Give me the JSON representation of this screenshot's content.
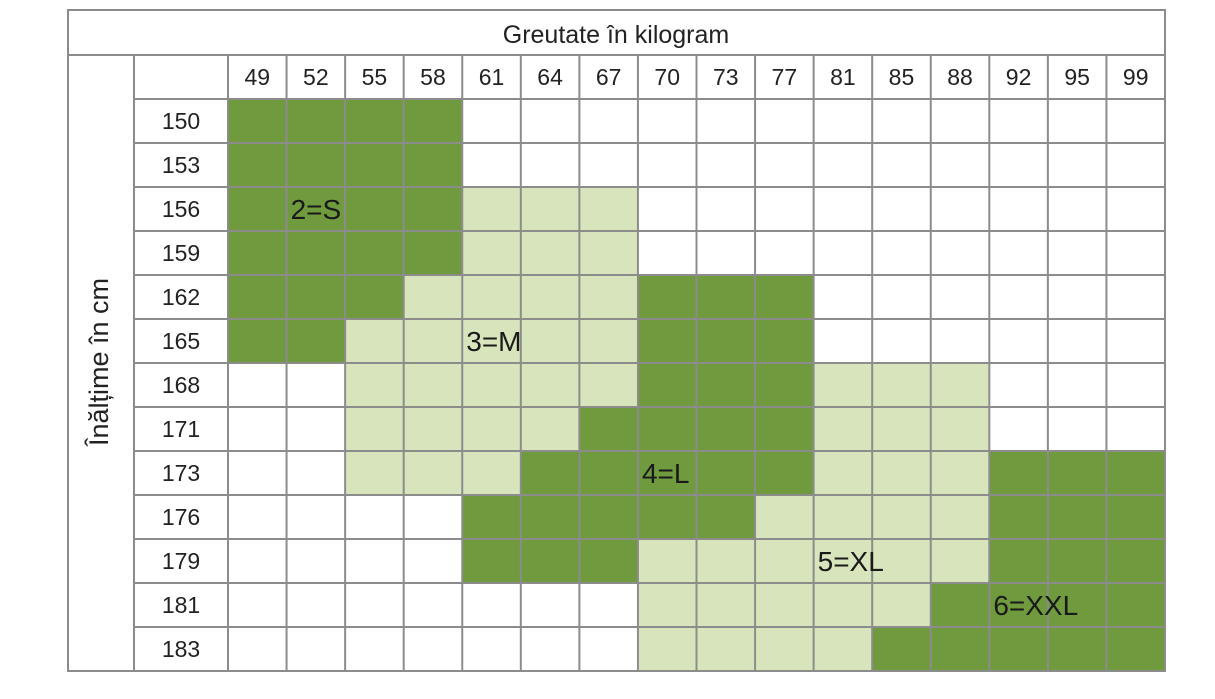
{
  "colors": {
    "dark_green": "#6f9a3e",
    "light_green": "#d8e4bc",
    "empty": "#ffffff",
    "grid": "#8c8c8c",
    "text": "#222222"
  },
  "chart_data": {
    "type": "table",
    "title": "Greutate în kilogram",
    "ylabel": "Înălțime în cm",
    "weights": [
      "49",
      "52",
      "55",
      "58",
      "61",
      "64",
      "67",
      "70",
      "73",
      "77",
      "81",
      "85",
      "88",
      "92",
      "95",
      "99"
    ],
    "heights": [
      "150",
      "153",
      "156",
      "159",
      "162",
      "165",
      "168",
      "171",
      "173",
      "176",
      "179",
      "181",
      "183"
    ],
    "sizes": [
      {
        "code": 2,
        "label": "2=S",
        "shade": "dark"
      },
      {
        "code": 3,
        "label": "3=M",
        "shade": "light"
      },
      {
        "code": 4,
        "label": "4=L",
        "shade": "dark"
      },
      {
        "code": 5,
        "label": "5=XL",
        "shade": "light"
      },
      {
        "code": 6,
        "label": "6=XXL",
        "shade": "dark"
      }
    ],
    "grid": [
      [
        2,
        2,
        2,
        2,
        0,
        0,
        0,
        0,
        0,
        0,
        0,
        0,
        0,
        0,
        0,
        0
      ],
      [
        2,
        2,
        2,
        2,
        0,
        0,
        0,
        0,
        0,
        0,
        0,
        0,
        0,
        0,
        0,
        0
      ],
      [
        2,
        2,
        2,
        2,
        3,
        3,
        3,
        0,
        0,
        0,
        0,
        0,
        0,
        0,
        0,
        0
      ],
      [
        2,
        2,
        2,
        2,
        3,
        3,
        3,
        0,
        0,
        0,
        0,
        0,
        0,
        0,
        0,
        0
      ],
      [
        2,
        2,
        2,
        3,
        3,
        3,
        3,
        4,
        4,
        4,
        0,
        0,
        0,
        0,
        0,
        0
      ],
      [
        2,
        2,
        3,
        3,
        3,
        3,
        3,
        4,
        4,
        4,
        0,
        0,
        0,
        0,
        0,
        0
      ],
      [
        0,
        0,
        3,
        3,
        3,
        3,
        3,
        4,
        4,
        4,
        5,
        5,
        5,
        0,
        0,
        0
      ],
      [
        0,
        0,
        3,
        3,
        3,
        3,
        4,
        4,
        4,
        4,
        5,
        5,
        5,
        0,
        0,
        0
      ],
      [
        0,
        0,
        3,
        3,
        3,
        4,
        4,
        4,
        4,
        4,
        5,
        5,
        5,
        6,
        6,
        6
      ],
      [
        0,
        0,
        0,
        0,
        4,
        4,
        4,
        4,
        4,
        5,
        5,
        5,
        5,
        6,
        6,
        6
      ],
      [
        0,
        0,
        0,
        0,
        4,
        4,
        4,
        5,
        5,
        5,
        5,
        5,
        5,
        6,
        6,
        6
      ],
      [
        0,
        0,
        0,
        0,
        0,
        0,
        0,
        5,
        5,
        5,
        5,
        5,
        6,
        6,
        6,
        6
      ],
      [
        0,
        0,
        0,
        0,
        0,
        0,
        0,
        5,
        5,
        5,
        5,
        6,
        6,
        6,
        6,
        6
      ]
    ]
  }
}
